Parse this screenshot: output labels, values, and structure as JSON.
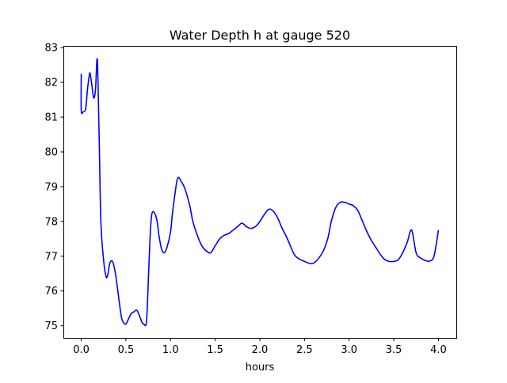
{
  "chart_data": {
    "type": "line",
    "title": "Water Depth h at gauge 520",
    "xlabel": "hours",
    "ylabel": "",
    "xlim": [
      -0.2,
      4.2
    ],
    "ylim": [
      74.65,
      83.05
    ],
    "xticks": [
      0.0,
      0.5,
      1.0,
      1.5,
      2.0,
      2.5,
      3.0,
      3.5,
      4.0
    ],
    "xtick_labels": [
      "0.0",
      "0.5",
      "1.0",
      "1.5",
      "2.0",
      "2.5",
      "3.0",
      "3.5",
      "4.0"
    ],
    "yticks": [
      75,
      76,
      77,
      78,
      79,
      80,
      81,
      82,
      83
    ],
    "ytick_labels": [
      "75",
      "76",
      "77",
      "78",
      "79",
      "80",
      "81",
      "82",
      "83"
    ],
    "grid": false,
    "legend": "none",
    "series": [
      {
        "color": "#0000ff",
        "x": [
          0.0,
          0.0,
          0.02,
          0.05,
          0.07,
          0.09,
          0.1,
          0.12,
          0.14,
          0.16,
          0.18,
          0.2,
          0.22,
          0.25,
          0.28,
          0.3,
          0.32,
          0.35,
          0.38,
          0.41,
          0.43,
          0.45,
          0.47,
          0.5,
          0.53,
          0.56,
          0.59,
          0.62,
          0.65,
          0.68,
          0.7,
          0.73,
          0.75,
          0.77,
          0.79,
          0.82,
          0.85,
          0.87,
          0.9,
          0.93,
          0.96,
          1.0,
          1.02,
          1.05,
          1.08,
          1.12,
          1.16,
          1.19,
          1.22,
          1.25,
          1.3,
          1.35,
          1.4,
          1.45,
          1.5,
          1.55,
          1.6,
          1.65,
          1.7,
          1.75,
          1.8,
          1.85,
          1.9,
          1.95,
          2.0,
          2.05,
          2.1,
          2.15,
          2.2,
          2.25,
          2.3,
          2.35,
          2.4,
          2.5,
          2.6,
          2.7,
          2.76,
          2.8,
          2.85,
          2.9,
          2.95,
          3.0,
          3.05,
          3.1,
          3.15,
          3.2,
          3.25,
          3.3,
          3.35,
          3.4,
          3.45,
          3.5,
          3.55,
          3.6,
          3.65,
          3.7,
          3.75,
          3.8,
          3.85,
          3.9,
          3.95,
          4.0
        ],
        "y": [
          82.25,
          81.2,
          81.15,
          81.25,
          81.8,
          82.2,
          82.25,
          81.9,
          81.55,
          81.8,
          82.65,
          80.5,
          78.0,
          76.9,
          76.4,
          76.5,
          76.8,
          76.85,
          76.55,
          76.0,
          75.6,
          75.25,
          75.1,
          75.05,
          75.2,
          75.35,
          75.4,
          75.45,
          75.3,
          75.1,
          75.05,
          75.1,
          76.2,
          77.5,
          78.2,
          78.25,
          78.0,
          77.6,
          77.2,
          77.1,
          77.25,
          77.7,
          78.2,
          78.8,
          79.25,
          79.15,
          78.95,
          78.7,
          78.4,
          78.0,
          77.6,
          77.3,
          77.15,
          77.1,
          77.3,
          77.5,
          77.6,
          77.65,
          77.75,
          77.85,
          77.95,
          77.85,
          77.8,
          77.85,
          78.0,
          78.2,
          78.35,
          78.3,
          78.1,
          77.8,
          77.55,
          77.25,
          77.0,
          76.85,
          76.8,
          77.1,
          77.5,
          78.0,
          78.4,
          78.55,
          78.55,
          78.5,
          78.45,
          78.3,
          78.0,
          77.7,
          77.45,
          77.25,
          77.05,
          76.9,
          76.85,
          76.85,
          76.9,
          77.1,
          77.4,
          77.75,
          77.1,
          76.95,
          76.88,
          76.86,
          77.0,
          77.75
        ]
      }
    ]
  }
}
